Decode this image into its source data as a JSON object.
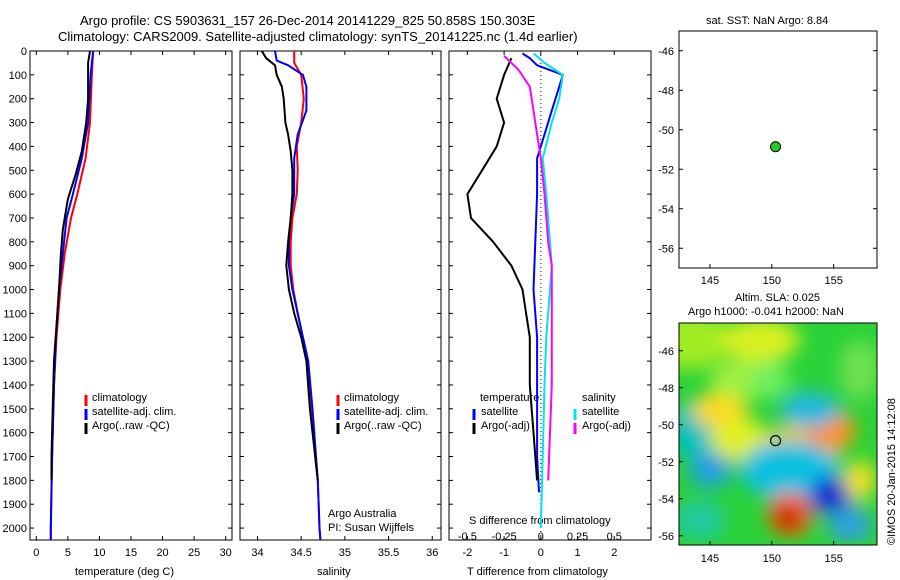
{
  "header": {
    "title1": "Argo profile: CS 5903631_157 26-Dec-2014 20141229_825 50.858S 150.303E",
    "title2": "Climatology: CARS2009. Satellite-adjusted climatology: synTS_20141225.nc (1.4d earlier)"
  },
  "colors": {
    "climatology": "#ff0000",
    "satellite": "#0000ff",
    "argo": "#000000",
    "sal_sat": "#00e5e5",
    "sal_argo": "#ff00ff",
    "float": "#22cc22"
  },
  "chart_data": [
    {
      "type": "line",
      "xlabel": "temperature (deg C)",
      "xlim": [
        -1,
        31
      ],
      "ylim": [
        2050,
        0
      ],
      "xticks": [
        0,
        5,
        10,
        15,
        20,
        25,
        30
      ],
      "yticks": [
        0,
        100,
        200,
        300,
        400,
        500,
        600,
        700,
        800,
        900,
        1000,
        1100,
        1200,
        1300,
        1400,
        1500,
        1600,
        1700,
        1800,
        1900,
        2000
      ],
      "legend": [
        "climatology",
        "satellite-adj. clim.",
        "Argo(..raw -QC)"
      ],
      "series": [
        {
          "name": "climatology",
          "color": "red",
          "points": [
            [
              9,
              0
            ],
            [
              8.8,
              100
            ],
            [
              8.5,
              300
            ],
            [
              7.8,
              450
            ],
            [
              6.5,
              600
            ],
            [
              5.5,
              700
            ],
            [
              4.5,
              850
            ],
            [
              3.8,
              1000
            ],
            [
              3.2,
              1200
            ],
            [
              2.8,
              1400
            ],
            [
              2.5,
              1700
            ],
            [
              2.3,
              2000
            ],
            [
              2.3,
              2050
            ]
          ]
        },
        {
          "name": "satellite-adj. clim.",
          "color": "blue",
          "points": [
            [
              9,
              0
            ],
            [
              8.6,
              100
            ],
            [
              8.2,
              300
            ],
            [
              7.2,
              450
            ],
            [
              5.8,
              600
            ],
            [
              4.8,
              700
            ],
            [
              4.2,
              850
            ],
            [
              3.6,
              1000
            ],
            [
              3.1,
              1200
            ],
            [
              2.8,
              1400
            ],
            [
              2.5,
              1700
            ],
            [
              2.3,
              2000
            ],
            [
              2.3,
              2050
            ]
          ]
        },
        {
          "name": "Argo(..raw -QC)",
          "color": "black",
          "points": [
            [
              8.5,
              0
            ],
            [
              8.2,
              50
            ],
            [
              8.2,
              200
            ],
            [
              7.9,
              300
            ],
            [
              7.2,
              420
            ],
            [
              6.2,
              520
            ],
            [
              5.0,
              620
            ],
            [
              4.2,
              750
            ],
            [
              3.9,
              850
            ],
            [
              3.6,
              1000
            ],
            [
              3.2,
              1150
            ],
            [
              2.8,
              1300
            ],
            [
              2.6,
              1500
            ],
            [
              2.4,
              1700
            ],
            [
              2.4,
              1800
            ]
          ]
        }
      ]
    },
    {
      "type": "line",
      "xlabel": "salinity",
      "xlim": [
        33.8,
        36.1
      ],
      "ylim": [
        2050,
        0
      ],
      "xticks": [
        34,
        34.5,
        35,
        35.5,
        36
      ],
      "legend": [
        "climatology",
        "satellite-adj. clim.",
        "Argo(..raw -QC)"
      ],
      "annotation": [
        "Argo Australia",
        "PI: Susan Wijffels"
      ],
      "series": [
        {
          "name": "climatology",
          "color": "red",
          "points": [
            [
              34.42,
              0
            ],
            [
              34.42,
              50
            ],
            [
              34.5,
              100
            ],
            [
              34.53,
              200
            ],
            [
              34.5,
              300
            ],
            [
              34.45,
              400
            ],
            [
              34.46,
              500
            ],
            [
              34.45,
              600
            ],
            [
              34.4,
              700
            ],
            [
              34.38,
              800
            ],
            [
              34.38,
              900
            ],
            [
              34.41,
              1000
            ],
            [
              34.46,
              1100
            ],
            [
              34.52,
              1200
            ],
            [
              34.58,
              1300
            ],
            [
              34.62,
              1500
            ],
            [
              34.66,
              1700
            ],
            [
              34.69,
              1800
            ],
            [
              34.71,
              2000
            ],
            [
              34.72,
              2050
            ]
          ]
        },
        {
          "name": "satellite-adj. clim.",
          "color": "blue",
          "points": [
            [
              34.2,
              0
            ],
            [
              34.22,
              40
            ],
            [
              34.35,
              60
            ],
            [
              34.52,
              100
            ],
            [
              34.56,
              150
            ],
            [
              34.56,
              250
            ],
            [
              34.46,
              350
            ],
            [
              34.42,
              450
            ],
            [
              34.42,
              600
            ],
            [
              34.38,
              700
            ],
            [
              34.36,
              800
            ],
            [
              34.36,
              900
            ],
            [
              34.4,
              1000
            ],
            [
              34.46,
              1100
            ],
            [
              34.52,
              1200
            ],
            [
              34.58,
              1300
            ],
            [
              34.63,
              1500
            ],
            [
              34.67,
              1700
            ],
            [
              34.69,
              1800
            ],
            [
              34.71,
              2000
            ],
            [
              34.72,
              2050
            ]
          ]
        },
        {
          "name": "Argo(..raw -QC)",
          "color": "black",
          "points": [
            [
              34.05,
              0
            ],
            [
              34.1,
              30
            ],
            [
              34.2,
              60
            ],
            [
              34.22,
              100
            ],
            [
              34.28,
              150
            ],
            [
              34.3,
              200
            ],
            [
              34.32,
              300
            ],
            [
              34.35,
              350
            ],
            [
              34.38,
              420
            ],
            [
              34.4,
              500
            ],
            [
              34.4,
              600
            ],
            [
              34.38,
              700
            ],
            [
              34.35,
              800
            ],
            [
              34.33,
              900
            ],
            [
              34.36,
              1000
            ],
            [
              34.42,
              1100
            ],
            [
              34.5,
              1200
            ],
            [
              34.56,
              1300
            ],
            [
              34.6,
              1500
            ],
            [
              34.66,
              1700
            ],
            [
              34.69,
              1800
            ]
          ]
        }
      ]
    },
    {
      "type": "line",
      "xlabel": "T difference from climatology",
      "xlabel2": "S difference from climatology",
      "xlim": [
        -2.5,
        3
      ],
      "ylim": [
        2050,
        0
      ],
      "xticks": [
        -2,
        -1,
        0,
        1,
        2
      ],
      "xticks2": [
        "-0.5",
        "-0.25",
        "0",
        "0.25",
        "0.5"
      ],
      "legend_t": {
        "title": "temperature",
        "items": [
          "satellite",
          "Argo(-adj)"
        ]
      },
      "legend_s": {
        "title": "salinity",
        "items": [
          "satellite",
          "Argo(-adj)"
        ]
      },
      "series": [
        {
          "name": "T satellite",
          "color": "blue",
          "points": [
            [
              -0.5,
              10
            ],
            [
              -0.3,
              30
            ],
            [
              -0.1,
              60
            ],
            [
              0.6,
              100
            ],
            [
              0.5,
              150
            ],
            [
              0.3,
              250
            ],
            [
              0.1,
              350
            ],
            [
              -0.1,
              450
            ],
            [
              -0.1,
              600
            ],
            [
              -0.15,
              800
            ],
            [
              -0.2,
              1000
            ],
            [
              -0.15,
              1100
            ],
            [
              -0.1,
              1200
            ],
            [
              -0.1,
              1400
            ],
            [
              -0.1,
              1700
            ],
            [
              -0.05,
              1850
            ]
          ]
        },
        {
          "name": "T Argo(-adj)",
          "color": "black",
          "points": [
            [
              -0.8,
              30
            ],
            [
              -1.0,
              100
            ],
            [
              -1.2,
              200
            ],
            [
              -1.0,
              300
            ],
            [
              -1.2,
              400
            ],
            [
              -1.6,
              500
            ],
            [
              -2.0,
              600
            ],
            [
              -1.9,
              700
            ],
            [
              -1.3,
              800
            ],
            [
              -0.8,
              900
            ],
            [
              -0.5,
              1000
            ],
            [
              -0.4,
              1100
            ],
            [
              -0.3,
              1200
            ],
            [
              -0.3,
              1400
            ],
            [
              -0.2,
              1600
            ],
            [
              -0.1,
              1800
            ]
          ]
        },
        {
          "name": "S satellite",
          "color": "cyan",
          "points": [
            [
              -0.2,
              10
            ],
            [
              0.1,
              50
            ],
            [
              0.6,
              100
            ],
            [
              0.5,
              200
            ],
            [
              0.3,
              300
            ],
            [
              0.05,
              450
            ],
            [
              0.15,
              600
            ],
            [
              0.25,
              800
            ],
            [
              0.3,
              900
            ],
            [
              0.25,
              1000
            ],
            [
              0.15,
              1200
            ],
            [
              0.1,
              1400
            ],
            [
              0.05,
              1700
            ],
            [
              0.0,
              2000
            ]
          ]
        },
        {
          "name": "S Argo(-adj)",
          "color": "magenta",
          "points": [
            [
              -1.0,
              20
            ],
            [
              -0.6,
              80
            ],
            [
              -0.3,
              150
            ],
            [
              -0.2,
              250
            ],
            [
              -0.1,
              350
            ],
            [
              0.0,
              450
            ],
            [
              0.1,
              600
            ],
            [
              0.2,
              800
            ],
            [
              0.3,
              900
            ],
            [
              0.3,
              1000
            ],
            [
              0.3,
              1200
            ],
            [
              0.3,
              1400
            ],
            [
              0.25,
              1600
            ],
            [
              0.2,
              1800
            ]
          ]
        }
      ]
    },
    {
      "type": "scatter",
      "title": "sat. SST: NaN Argo: 8.84",
      "xlim": [
        142.5,
        158.5
      ],
      "ylim": [
        -57,
        -45
      ],
      "xticks": [
        145,
        150,
        155
      ],
      "yticks": [
        -46,
        -48,
        -50,
        -52,
        -54,
        -56
      ],
      "points": [
        [
          150.3,
          -50.86
        ]
      ]
    },
    {
      "type": "heatmap",
      "title1": "Altim. SLA: 0.025",
      "title2": "Argo h1000: -0.041 h2000: NaN",
      "side_label": "©IMOS 20-Jan-2015 14:12:08",
      "xlim": [
        142.5,
        158.5
      ],
      "ylim": [
        -56.5,
        -44.5
      ],
      "xticks": [
        145,
        150,
        155
      ],
      "yticks": [
        -46,
        -48,
        -50,
        -52,
        -54,
        -56
      ],
      "marker": [
        150.3,
        -50.86
      ]
    }
  ]
}
